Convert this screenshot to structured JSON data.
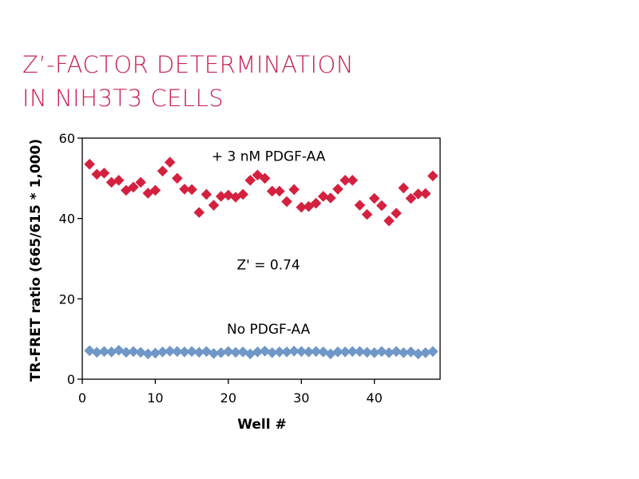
{
  "title_lines": [
    "Z’-FACTOR DETERMINATION",
    "IN NIH3T3 CELLS"
  ],
  "colors": {
    "title": "#c8234f",
    "treated": "#d4213f",
    "untreated": "#6f97c8",
    "axis": "#000000"
  },
  "chart_data": {
    "type": "scatter",
    "title": "Z’-FACTOR DETERMINATION IN NIH3T3 CELLS",
    "xlabel": "Well #",
    "ylabel": "TR-FRET ratio (665/615 * 1,000)",
    "xlim": [
      0,
      49
    ],
    "ylim": [
      0,
      60
    ],
    "xticks": [
      0,
      10,
      20,
      30,
      40
    ],
    "yticks": [
      0,
      20,
      40,
      60
    ],
    "grid": false,
    "marker": "diamond",
    "annotations": [
      {
        "text": "+ 3 nM  PDGF-AA",
        "x": 25.5,
        "y": 55.5
      },
      {
        "text": "Z' = 0.74",
        "x": 25.5,
        "y": 28.5
      },
      {
        "text": "No PDGF-AA",
        "x": 25.5,
        "y": 12.5
      }
    ],
    "series": [
      {
        "key": "treated",
        "x": [
          1,
          2,
          3,
          4,
          5,
          6,
          7,
          8,
          9,
          10,
          11,
          12,
          13,
          14,
          15,
          16,
          17,
          18,
          19,
          20,
          21,
          22,
          23,
          24,
          25,
          26,
          27,
          28,
          29,
          30,
          31,
          32,
          33,
          34,
          35,
          36,
          37,
          38,
          39,
          40,
          41,
          42,
          43,
          44,
          45,
          46,
          47,
          48
        ],
        "y": [
          53.5,
          51,
          51.3,
          49,
          49.5,
          47,
          47.8,
          49,
          46.3,
          47,
          51.8,
          54,
          50,
          47.3,
          47.2,
          41.5,
          46,
          43.3,
          45.5,
          45.8,
          45.3,
          46,
          49.5,
          50.8,
          50,
          46.8,
          46.8,
          44.2,
          47.2,
          42.8,
          43,
          43.8,
          45.5,
          45.1,
          47.3,
          49.5,
          49.5,
          43.3,
          41,
          45,
          43.2,
          39.4,
          41.3,
          47.6,
          45,
          46.1,
          46.2,
          50.6
        ]
      },
      {
        "key": "untreated",
        "x": [
          1,
          2,
          3,
          4,
          5,
          6,
          7,
          8,
          9,
          10,
          11,
          12,
          13,
          14,
          15,
          16,
          17,
          18,
          19,
          20,
          21,
          22,
          23,
          24,
          25,
          26,
          27,
          28,
          29,
          30,
          31,
          32,
          33,
          34,
          35,
          36,
          37,
          38,
          39,
          40,
          41,
          42,
          43,
          44,
          45,
          46,
          47,
          48
        ],
        "y": [
          7.1,
          6.7,
          6.9,
          6.8,
          7.2,
          6.7,
          6.9,
          6.7,
          6.3,
          6.5,
          6.8,
          7,
          6.9,
          6.8,
          6.9,
          6.7,
          6.9,
          6.4,
          6.6,
          6.9,
          6.7,
          6.8,
          6.3,
          6.8,
          7,
          6.6,
          6.8,
          6.8,
          7,
          6.9,
          6.8,
          6.9,
          6.8,
          6.3,
          6.8,
          6.8,
          6.9,
          6.9,
          6.7,
          6.6,
          6.9,
          6.6,
          6.9,
          6.6,
          6.8,
          6.3,
          6.6,
          6.9
        ]
      }
    ]
  }
}
